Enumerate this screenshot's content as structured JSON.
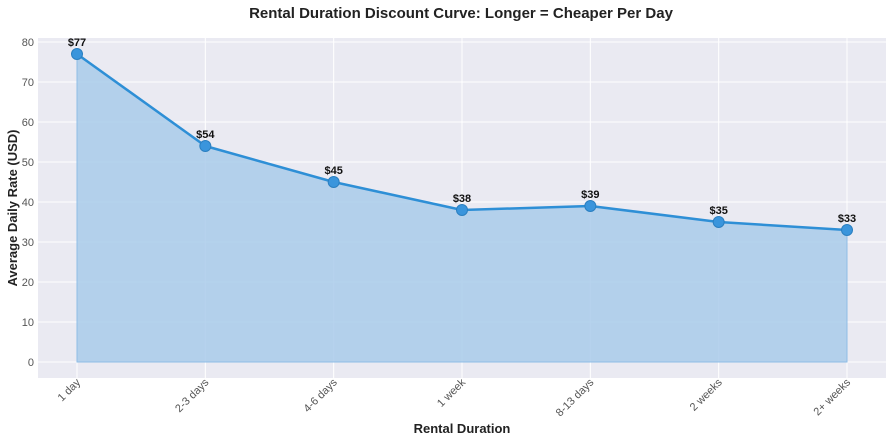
{
  "chart_data": {
    "type": "area",
    "title": "Rental Duration Discount Curve: Longer = Cheaper Per Day",
    "xlabel": "Rental Duration",
    "ylabel": "Average Daily Rate (USD)",
    "categories": [
      "1 day",
      "2-3 days",
      "4-6 days",
      "1 week",
      "8-13 days",
      "2 weeks",
      "2+ weeks"
    ],
    "series": [
      {
        "values": [
          77,
          54,
          45,
          38,
          39,
          35,
          33
        ],
        "labels": [
          "$77",
          "$54",
          "$45",
          "$38",
          "$39",
          "$35",
          "$33"
        ]
      }
    ],
    "ylim": [
      0,
      80
    ],
    "yticks": [
      "0",
      "10",
      "20",
      "30",
      "40",
      "50",
      "60",
      "70",
      "80"
    ],
    "grid": true,
    "legend": "none",
    "colors": {
      "line": "#2e8fd6",
      "fill": "#a9cbea",
      "marker": "#3a95dc",
      "plot_background": "#eaeaf2",
      "grid": "#ffffff"
    }
  }
}
